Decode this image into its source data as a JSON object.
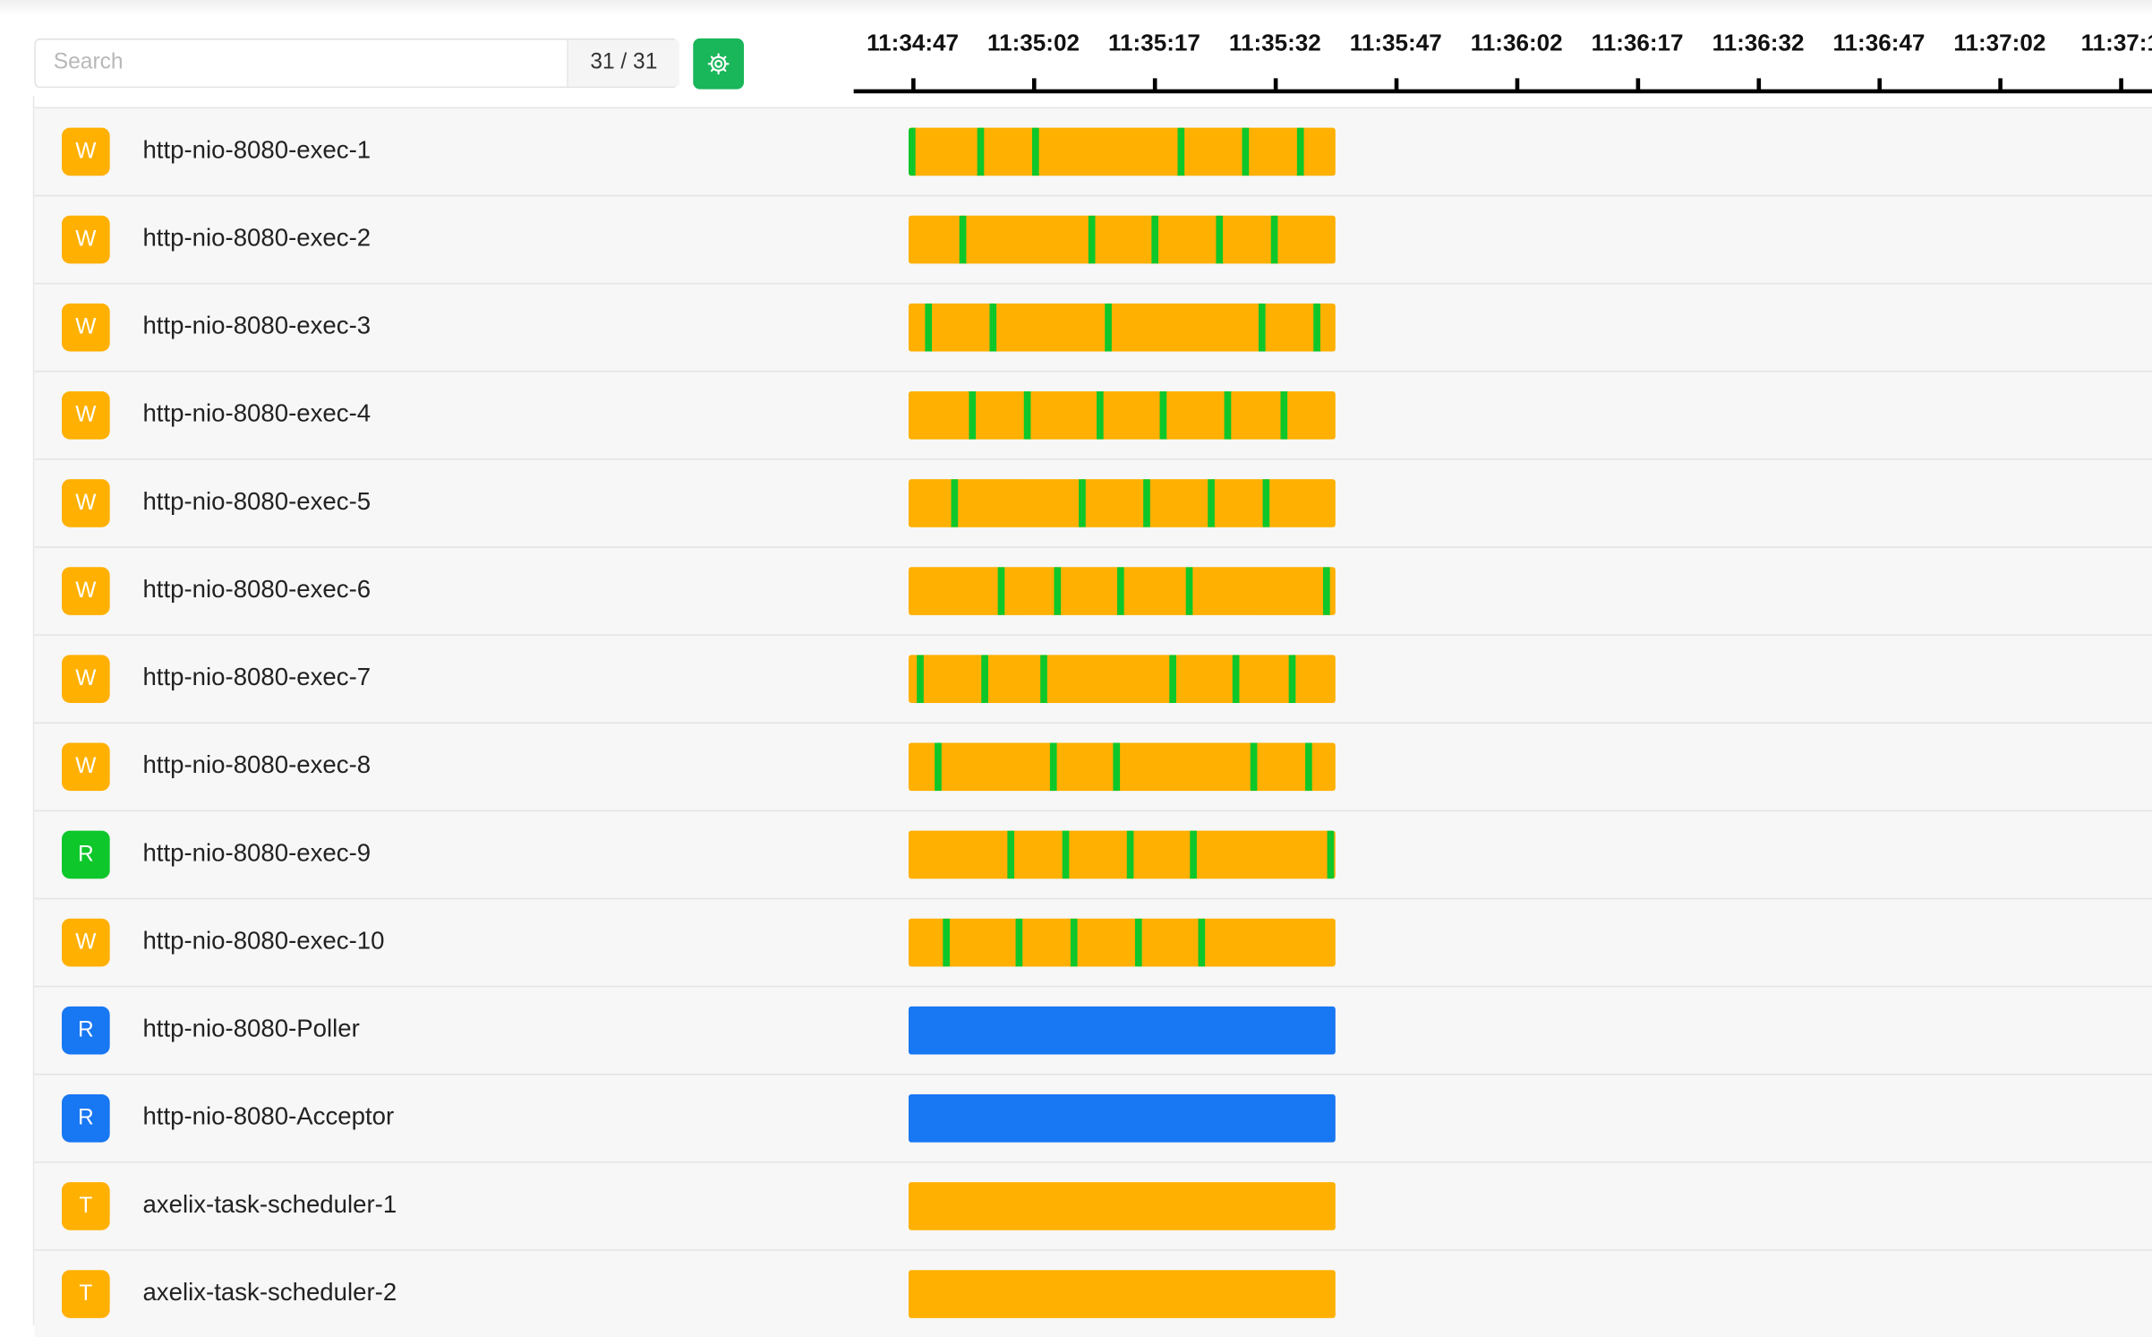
{
  "colors": {
    "waiting": "#ffb000",
    "running": "#0ec72a",
    "runnable_blue": "#1877f2",
    "badge_green": "#0ec72a",
    "gear_button": "#19b65a"
  },
  "search": {
    "placeholder": "Search",
    "value": "",
    "count": "31 / 31"
  },
  "settings": {
    "icon": "gear-icon"
  },
  "timeline": {
    "ticks": [
      "11:34:47",
      "11:35:02",
      "11:35:17",
      "11:35:32",
      "11:35:47",
      "11:36:02",
      "11:36:17",
      "11:36:32",
      "11:36:47",
      "11:37:02",
      "11:37:1"
    ]
  },
  "threads": [
    {
      "name": "http-nio-8080-exec-1",
      "state": "W",
      "state_color": "#ffb000",
      "bar_color": "#ffb000",
      "running_at": [
        0.0,
        0.16,
        0.29,
        0.63,
        0.78,
        0.91
      ]
    },
    {
      "name": "http-nio-8080-exec-2",
      "state": "W",
      "state_color": "#ffb000",
      "bar_color": "#ffb000",
      "running_at": [
        0.12,
        0.42,
        0.57,
        0.72,
        0.85
      ]
    },
    {
      "name": "http-nio-8080-exec-3",
      "state": "W",
      "state_color": "#ffb000",
      "bar_color": "#ffb000",
      "running_at": [
        0.04,
        0.19,
        0.46,
        0.82,
        0.95
      ]
    },
    {
      "name": "http-nio-8080-exec-4",
      "state": "W",
      "state_color": "#ffb000",
      "bar_color": "#ffb000",
      "running_at": [
        0.14,
        0.27,
        0.44,
        0.59,
        0.74,
        0.87
      ]
    },
    {
      "name": "http-nio-8080-exec-5",
      "state": "W",
      "state_color": "#ffb000",
      "bar_color": "#ffb000",
      "running_at": [
        0.1,
        0.4,
        0.55,
        0.7,
        0.83
      ]
    },
    {
      "name": "http-nio-8080-exec-6",
      "state": "W",
      "state_color": "#ffb000",
      "bar_color": "#ffb000",
      "running_at": [
        0.21,
        0.34,
        0.49,
        0.65,
        0.97
      ]
    },
    {
      "name": "http-nio-8080-exec-7",
      "state": "W",
      "state_color": "#ffb000",
      "bar_color": "#ffb000",
      "running_at": [
        0.02,
        0.17,
        0.31,
        0.61,
        0.76,
        0.89
      ]
    },
    {
      "name": "http-nio-8080-exec-8",
      "state": "W",
      "state_color": "#ffb000",
      "bar_color": "#ffb000",
      "running_at": [
        0.06,
        0.33,
        0.48,
        0.8,
        0.93
      ]
    },
    {
      "name": "http-nio-8080-exec-9",
      "state": "R",
      "state_color": "#0ec72a",
      "bar_color": "#ffb000",
      "running_at": [
        0.23,
        0.36,
        0.51,
        0.66,
        0.98
      ]
    },
    {
      "name": "http-nio-8080-exec-10",
      "state": "W",
      "state_color": "#ffb000",
      "bar_color": "#ffb000",
      "running_at": [
        0.08,
        0.25,
        0.38,
        0.53,
        0.68
      ]
    },
    {
      "name": "http-nio-8080-Poller",
      "state": "R",
      "state_color": "#1877f2",
      "bar_color": "#1877f2",
      "running_at": []
    },
    {
      "name": "http-nio-8080-Acceptor",
      "state": "R",
      "state_color": "#1877f2",
      "bar_color": "#1877f2",
      "running_at": []
    },
    {
      "name": "axelix-task-scheduler-1",
      "state": "T",
      "state_color": "#ffb000",
      "bar_color": "#ffb000",
      "running_at": []
    },
    {
      "name": "axelix-task-scheduler-2",
      "state": "T",
      "state_color": "#ffb000",
      "bar_color": "#ffb000",
      "running_at": []
    }
  ]
}
